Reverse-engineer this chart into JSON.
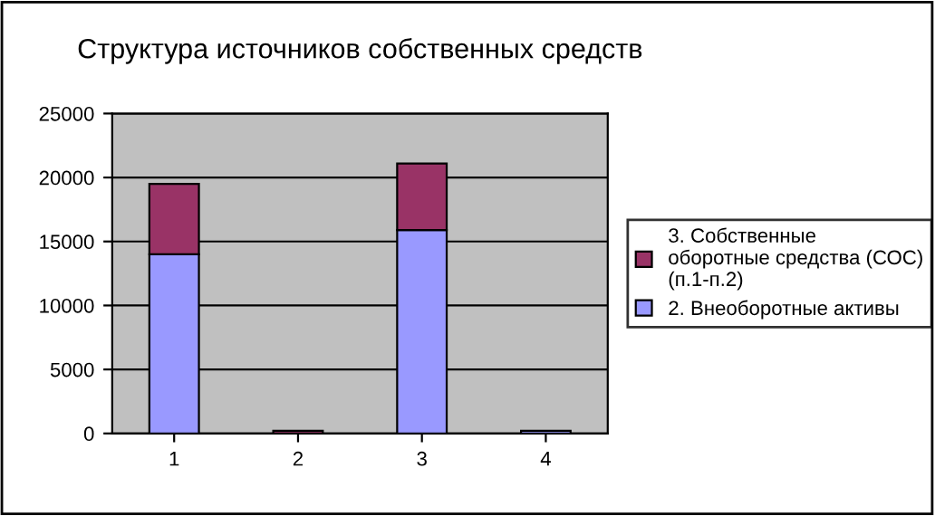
{
  "chart_data": {
    "type": "bar",
    "title": "Структура источников собственных средств",
    "categories": [
      "1",
      "2",
      "3",
      "4"
    ],
    "stacked": true,
    "series": [
      {
        "name": "2. Внеоборотные активы",
        "color": "#9999ff",
        "values": [
          14000,
          null,
          15900,
          200
        ]
      },
      {
        "name": "3. Собственные оборотные средства (СОС) (п.1-п.2)",
        "color": "#993366",
        "values": [
          5500,
          200,
          5200,
          null
        ]
      }
    ],
    "ylim": [
      0,
      25000
    ],
    "yticks": [
      0,
      5000,
      10000,
      15000,
      20000,
      25000
    ],
    "grid": "y",
    "legend": "right"
  }
}
